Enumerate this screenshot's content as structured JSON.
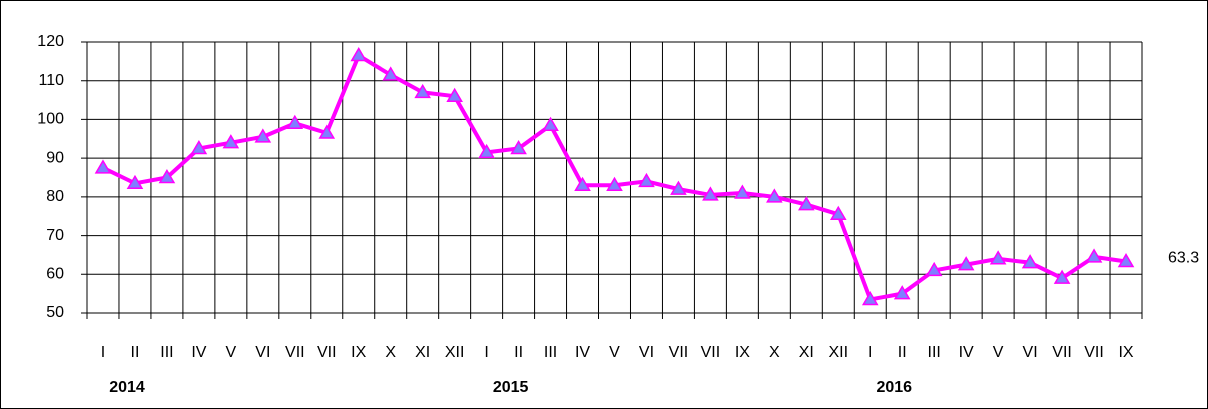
{
  "chart_data": {
    "type": "line",
    "categories": [
      "I",
      "II",
      "III",
      "IV",
      "V",
      "VI",
      "VII",
      "VII",
      "IX",
      "X",
      "XI",
      "XII",
      "I",
      "II",
      "III",
      "IV",
      "V",
      "VI",
      "VII",
      "VII",
      "IX",
      "X",
      "XI",
      "XII",
      "I",
      "II",
      "III",
      "IV",
      "V",
      "VI",
      "VII",
      "VII",
      "IX"
    ],
    "year_labels": [
      "2014",
      "2015",
      "2016"
    ],
    "series": [
      {
        "color": "#ff00ff",
        "marker_color": "#7f7fff",
        "values": [
          87.5,
          83.5,
          85,
          92.5,
          94,
          95.5,
          99,
          96.5,
          116.5,
          111.5,
          107,
          106,
          91.5,
          92.5,
          98.5,
          83,
          83,
          84,
          82,
          80.5,
          81,
          80,
          78,
          75.5,
          53.5,
          55,
          61,
          62.5,
          64,
          63,
          59,
          64.5,
          63.3
        ],
        "value_labels": [
          null,
          null,
          null,
          null,
          null,
          null,
          null,
          null,
          null,
          null,
          null,
          null,
          null,
          null,
          null,
          null,
          null,
          null,
          null,
          null,
          null,
          null,
          null,
          null,
          null,
          null,
          null,
          null,
          null,
          null,
          null,
          null,
          "63.3"
        ]
      }
    ],
    "ylim": [
      50,
      120
    ],
    "yticks": [
      50,
      60,
      70,
      80,
      90,
      100,
      110,
      120
    ],
    "grid": true
  }
}
